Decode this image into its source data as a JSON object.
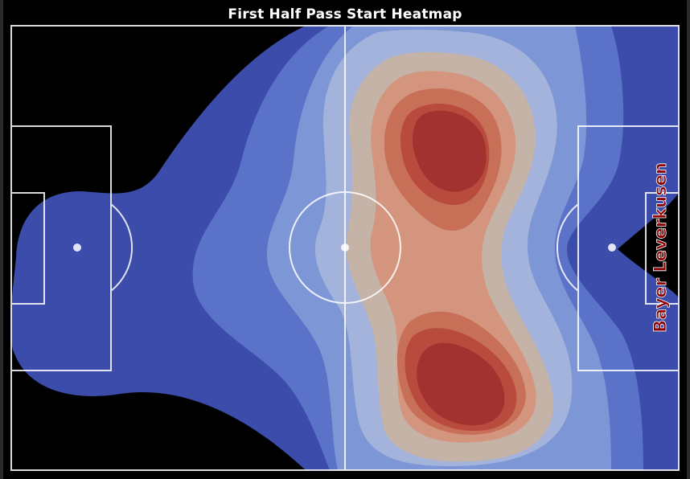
{
  "chart_data": {
    "type": "heatmap",
    "title": "First Half Pass Start Heatmap",
    "team_label": "Bayer Leverkusen",
    "colormap": "coolwarm",
    "pitch": {
      "length": 120,
      "width": 80,
      "line_color": "#ffffff",
      "background": "#000000"
    },
    "density_levels": 8,
    "level_colors": [
      "#3b4cab",
      "#5a72c8",
      "#7d97d6",
      "#a3b3dc",
      "#c5b3a7",
      "#d4957f",
      "#c86f58",
      "#b94a3e",
      "#a23230"
    ],
    "hotspots": [
      {
        "x": 79,
        "y": 18,
        "label": "peak"
      },
      {
        "x": 81,
        "y": 64,
        "label": "peak"
      }
    ],
    "team_label_color": "#8b0000"
  }
}
